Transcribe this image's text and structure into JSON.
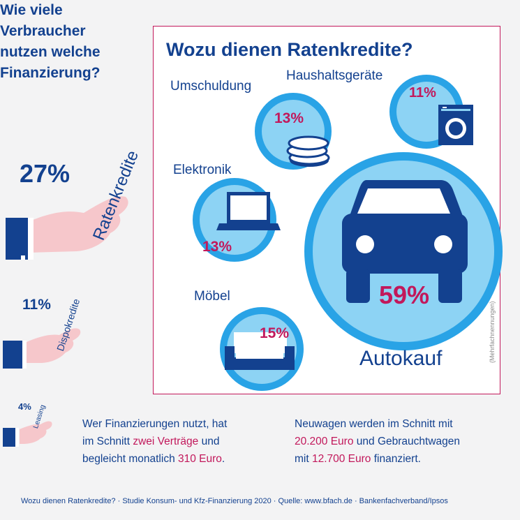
{
  "left_panel": {
    "title": "Wie viele Verbraucher nutzen welche Finanzierung?",
    "items": [
      {
        "label": "Ratenkredite",
        "value": "27%"
      },
      {
        "label": "Dispokredite",
        "value": "11%"
      },
      {
        "label": "Leasing",
        "value": "4%"
      }
    ]
  },
  "chart_data": {
    "type": "bubble",
    "title": "Wozu dienen Ratenkredite?",
    "note": "(Mehrfachnennungen)",
    "categories": [
      "Umschuldung",
      "Haushaltsgeräte",
      "Elektronik",
      "Möbel",
      "Autokauf"
    ],
    "values": [
      13,
      11,
      13,
      15,
      59
    ],
    "value_labels": [
      "13%",
      "11%",
      "13%",
      "15%",
      "59%"
    ]
  },
  "financing_shares": {
    "categories": [
      "Ratenkredite",
      "Dispokredite",
      "Leasing"
    ],
    "values": [
      27,
      11,
      4
    ]
  },
  "stats": {
    "left": {
      "line1": "Wer Finanzierungen nutzt, hat",
      "line2_pre": "im Schnitt ",
      "line2_hl": "zwei Verträge",
      "line2_post": " und",
      "line3_pre": "begleicht monatlich ",
      "line3_hl": "310 Euro",
      "line3_post": "."
    },
    "right": {
      "line1": "Neuwagen werden im Schnitt mit",
      "line2_hl": "20.200 Euro",
      "line2_post": " und Gebrauchtwagen",
      "line3_pre": "mit ",
      "line3_hl": "12.700 Euro",
      "line3_post": " finanziert."
    }
  },
  "footer": "Wozu dienen Ratenkredite? · Studie Konsum- und Kfz-Finanzierung 2020 · Quelle: www.bfach.de · Bankenfachverband/Ipsos",
  "colors": {
    "navy": "#13418f",
    "magenta": "#c2185b",
    "bubble_outer": "#29a3e6",
    "bubble_inner": "#8dd3f4",
    "hand": "#f6c7cb",
    "background": "#f3f3f4"
  }
}
